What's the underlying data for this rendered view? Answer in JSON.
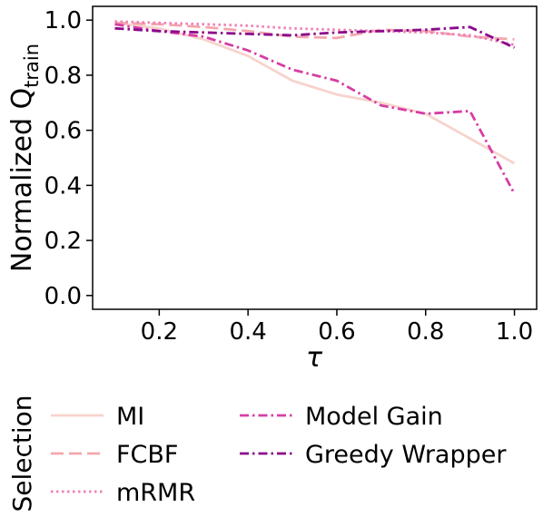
{
  "chart_data": {
    "type": "line",
    "xlabel": "τ",
    "ylabel": {
      "main": "Normalized Q",
      "sub": "train"
    },
    "xlim": [
      0.05,
      1.05
    ],
    "ylim": [
      -0.05,
      1.05
    ],
    "xticks": [
      "0.2",
      "0.4",
      "0.6",
      "0.8",
      "1.0"
    ],
    "yticks": [
      "0.0",
      "0.2",
      "0.4",
      "0.6",
      "0.8",
      "1.0"
    ],
    "grid": false,
    "x": [
      0.1,
      0.2,
      0.3,
      0.4,
      0.5,
      0.6,
      0.7,
      0.8,
      0.9,
      1.0
    ],
    "series": [
      {
        "name": "MI",
        "color": "#f7d3cd",
        "dash": "solid",
        "values": [
          0.99,
          0.97,
          0.93,
          0.87,
          0.78,
          0.73,
          0.7,
          0.66,
          0.57,
          0.48
        ]
      },
      {
        "name": "FCBF",
        "color": "#f4a6ae",
        "dash": "dashed",
        "values": [
          0.99,
          0.985,
          0.975,
          0.96,
          0.94,
          0.935,
          0.965,
          0.96,
          0.94,
          0.93
        ]
      },
      {
        "name": "mRMR",
        "color": "#f080b4",
        "dash": "dotted",
        "values": [
          0.995,
          0.99,
          0.985,
          0.98,
          0.97,
          0.965,
          0.96,
          0.955,
          0.945,
          0.91
        ]
      },
      {
        "name": "Model Gain",
        "color": "#d63ea5",
        "dash": "dashdot",
        "values": [
          0.985,
          0.96,
          0.94,
          0.89,
          0.82,
          0.78,
          0.69,
          0.66,
          0.67,
          0.37
        ]
      },
      {
        "name": "Greedy Wrapper",
        "color": "#8b0a8c",
        "dash": "dashdot",
        "values": [
          0.97,
          0.96,
          0.955,
          0.95,
          0.945,
          0.955,
          0.96,
          0.965,
          0.975,
          0.9
        ]
      }
    ],
    "legend": {
      "title": "Selection",
      "placement": "bottom"
    }
  }
}
